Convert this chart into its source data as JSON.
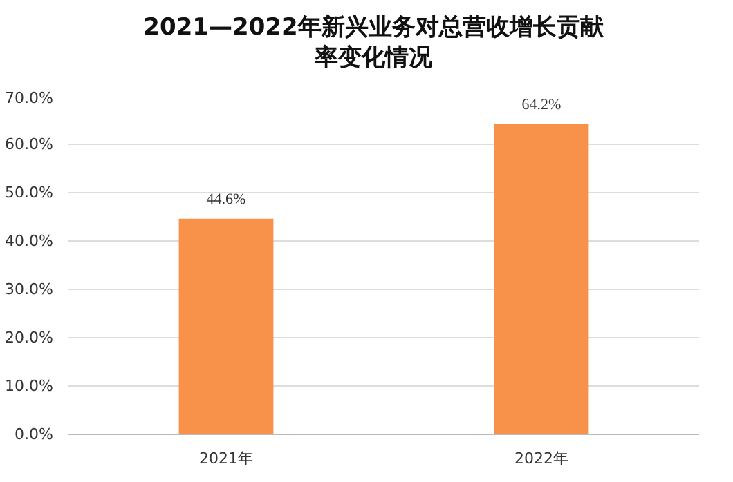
{
  "chart_data": {
    "type": "bar",
    "title": "2021—2022年新兴业务对总营收增长贡献率变化情况",
    "categories": [
      "2021年",
      "2022年"
    ],
    "values": [
      44.6,
      64.2
    ],
    "value_labels": [
      "44.6%",
      "64.2%"
    ],
    "color": "#f8914a",
    "ylim": [
      0,
      70
    ],
    "yticks": [
      {
        "value": 0,
        "label": "0.0%"
      },
      {
        "value": 10,
        "label": "10.0%"
      },
      {
        "value": 20,
        "label": "20.0%"
      },
      {
        "value": 30,
        "label": "30.0%"
      },
      {
        "value": 40,
        "label": "40.0%"
      },
      {
        "value": 50,
        "label": "50.0%"
      },
      {
        "value": 60,
        "label": "60.0%"
      },
      {
        "value": 70,
        "label": "70.0%"
      }
    ],
    "grid": "y"
  }
}
